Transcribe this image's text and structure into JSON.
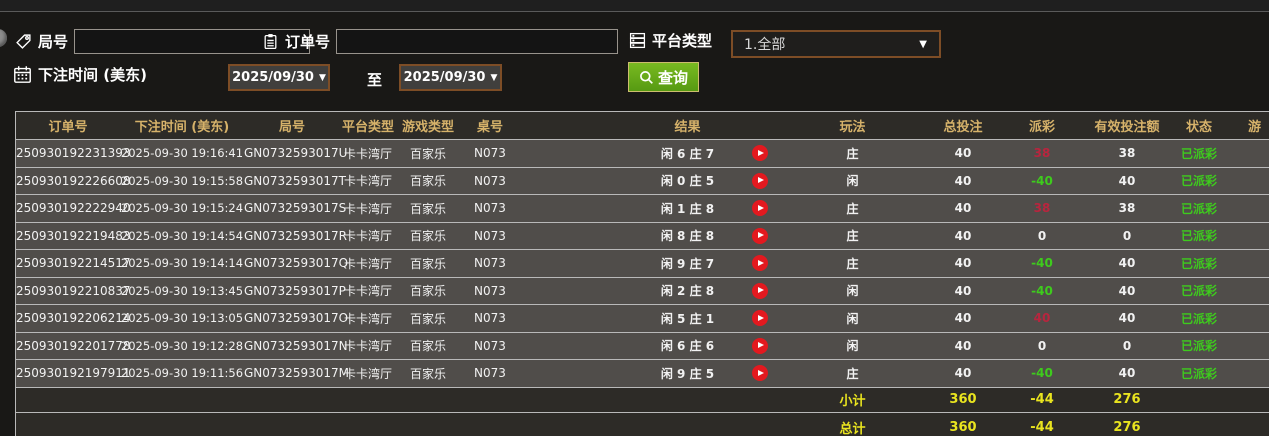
{
  "topbar": {
    "round_no": {
      "label": "局号",
      "value": "",
      "icon": "tag-icon"
    },
    "order_no": {
      "label": "订单号",
      "value": "",
      "icon": "clipboard-icon"
    },
    "platform": {
      "label": "平台类型",
      "value": "1.全部",
      "icon": "list-icon"
    },
    "bet_time": {
      "label": "下注时间 (美东)",
      "icon": "calendar-icon"
    },
    "date_from": "2025/09/30",
    "to_label": "至",
    "date_to": "2025/09/30",
    "query_button": {
      "label": "查询",
      "icon": "search-icon"
    }
  },
  "icons": {
    "arrow_down": "▼"
  },
  "table": {
    "headers": [
      "订单号",
      "下注时间 (美东)",
      "局号",
      "平台类型",
      "游戏类型",
      "桌号",
      "结果",
      "",
      "玩法",
      "总投注",
      "派彩",
      "有效投注额",
      "状态",
      "游"
    ],
    "rows": [
      {
        "order_no": "250930192231393",
        "bet_time": "2025-09-30 19:16:41",
        "round_no": "GN0732593017U",
        "platform": "卡卡湾厅",
        "game_type": "百家乐",
        "table_no": "N073",
        "result": "闲 6 庄 7",
        "bet_type": "庄",
        "total_bet": "40",
        "payout": "38",
        "payout_state": "win",
        "valid_bet": "38",
        "status": "已派彩"
      },
      {
        "order_no": "250930192226608",
        "bet_time": "2025-09-30 19:15:58",
        "round_no": "GN0732593017T",
        "platform": "卡卡湾厅",
        "game_type": "百家乐",
        "table_no": "N073",
        "result": "闲 0 庄 5",
        "bet_type": "闲",
        "total_bet": "40",
        "payout": "-40",
        "payout_state": "loss",
        "valid_bet": "40",
        "status": "已派彩"
      },
      {
        "order_no": "250930192222940",
        "bet_time": "2025-09-30 19:15:24",
        "round_no": "GN0732593017S",
        "platform": "卡卡湾厅",
        "game_type": "百家乐",
        "table_no": "N073",
        "result": "闲 1 庄 8",
        "bet_type": "庄",
        "total_bet": "40",
        "payout": "38",
        "payout_state": "win",
        "valid_bet": "38",
        "status": "已派彩"
      },
      {
        "order_no": "250930192219483",
        "bet_time": "2025-09-30 19:14:54",
        "round_no": "GN0732593017R",
        "platform": "卡卡湾厅",
        "game_type": "百家乐",
        "table_no": "N073",
        "result": "闲 8 庄 8",
        "bet_type": "庄",
        "total_bet": "40",
        "payout": "0",
        "payout_state": "push",
        "valid_bet": "0",
        "status": "已派彩"
      },
      {
        "order_no": "250930192214517",
        "bet_time": "2025-09-30 19:14:14",
        "round_no": "GN0732593017Q",
        "platform": "卡卡湾厅",
        "game_type": "百家乐",
        "table_no": "N073",
        "result": "闲 9 庄 7",
        "bet_type": "庄",
        "total_bet": "40",
        "payout": "-40",
        "payout_state": "loss",
        "valid_bet": "40",
        "status": "已派彩"
      },
      {
        "order_no": "250930192210837",
        "bet_time": "2025-09-30 19:13:45",
        "round_no": "GN0732593017P",
        "platform": "卡卡湾厅",
        "game_type": "百家乐",
        "table_no": "N073",
        "result": "闲 2 庄 8",
        "bet_type": "闲",
        "total_bet": "40",
        "payout": "-40",
        "payout_state": "loss",
        "valid_bet": "40",
        "status": "已派彩"
      },
      {
        "order_no": "250930192206214",
        "bet_time": "2025-09-30 19:13:05",
        "round_no": "GN0732593017O",
        "platform": "卡卡湾厅",
        "game_type": "百家乐",
        "table_no": "N073",
        "result": "闲 5 庄 1",
        "bet_type": "闲",
        "total_bet": "40",
        "payout": "40",
        "payout_state": "win",
        "valid_bet": "40",
        "status": "已派彩"
      },
      {
        "order_no": "250930192201778",
        "bet_time": "2025-09-30 19:12:28",
        "round_no": "GN0732593017N",
        "platform": "卡卡湾厅",
        "game_type": "百家乐",
        "table_no": "N073",
        "result": "闲 6 庄 6",
        "bet_type": "闲",
        "total_bet": "40",
        "payout": "0",
        "payout_state": "push",
        "valid_bet": "0",
        "status": "已派彩"
      },
      {
        "order_no": "250930192197911",
        "bet_time": "2025-09-30 19:11:56",
        "round_no": "GN0732593017M",
        "platform": "卡卡湾厅",
        "game_type": "百家乐",
        "table_no": "N073",
        "result": "闲 9 庄 5",
        "bet_type": "庄",
        "total_bet": "40",
        "payout": "-40",
        "payout_state": "loss",
        "valid_bet": "40",
        "status": "已派彩"
      }
    ],
    "subtotal": {
      "label": "小计",
      "total_bet": "360",
      "payout": "-44",
      "valid_bet": "276"
    },
    "grand_total": {
      "label": "总计",
      "total_bet": "360",
      "payout": "-44",
      "valid_bet": "276"
    }
  },
  "colors": {
    "accent_gold": "#d6b26a",
    "win_red": "#b8253e",
    "loss_green": "#3ecb1d",
    "status_green": "#3ecb1d",
    "totals_yellow": "#e9e41f",
    "button_green": "#569a12",
    "button_green_light": "#79ba21",
    "border_brown": "#7d4d26",
    "play_red": "#e3191f"
  }
}
